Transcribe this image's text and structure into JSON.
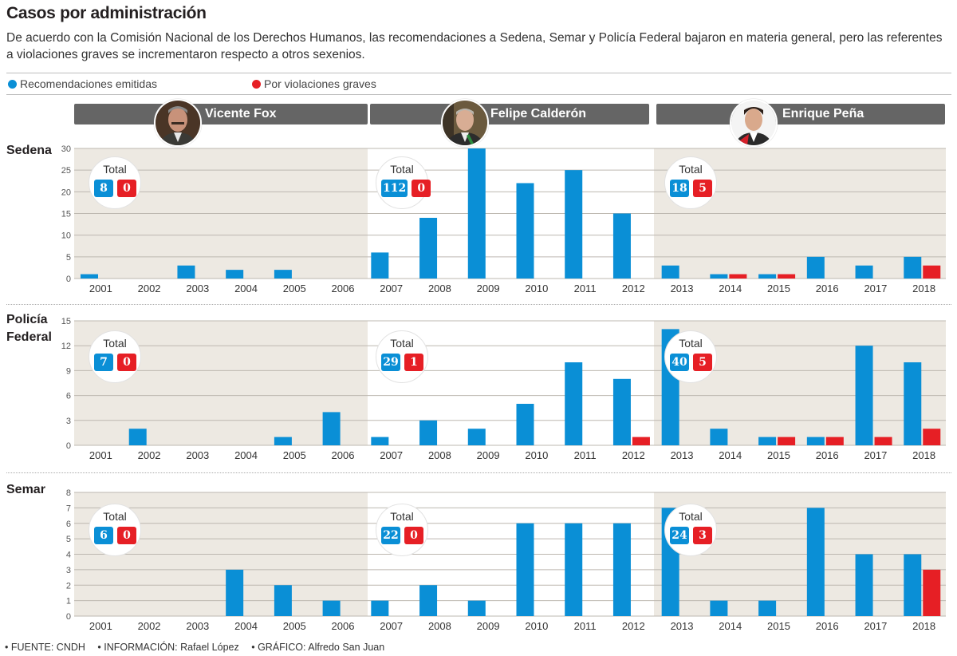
{
  "header": {
    "title": "Casos por administración",
    "subtitle": "De acuerdo con la Comisión Nacional de los Derechos Humanos, las recomendaciones a Sedena, Semar y Policía Federal bajaron en materia general, pero las referentes a violaciones graves se incrementaron respecto a otros sexenios."
  },
  "legend": [
    {
      "label": "Recomendaciones emitidas",
      "color": "#0a8fd6"
    },
    {
      "label": "Por violaciones graves",
      "color": "#e61f25"
    }
  ],
  "administrations": [
    {
      "name": "Vicente Fox",
      "years": [
        "2001",
        "2002",
        "2003",
        "2004",
        "2005",
        "2006"
      ]
    },
    {
      "name": "Felipe Calderón",
      "years": [
        "2007",
        "2008",
        "2009",
        "2010",
        "2011",
        "2012"
      ]
    },
    {
      "name": "Enrique Peña",
      "years": [
        "2013",
        "2014",
        "2015",
        "2016",
        "2017",
        "2018"
      ]
    }
  ],
  "total_label": "Total",
  "colors": {
    "blue": "#0a8fd6",
    "red": "#e61f25",
    "band": "#ede9e2",
    "grid": "#bdb8b0"
  },
  "chart_data": [
    {
      "type": "bar",
      "title": "Sedena",
      "categories": [
        "2001",
        "2002",
        "2003",
        "2004",
        "2005",
        "2006",
        "2007",
        "2008",
        "2009",
        "2010",
        "2011",
        "2012",
        "2013",
        "2014",
        "2015",
        "2016",
        "2017",
        "2018"
      ],
      "series": [
        {
          "name": "Recomendaciones emitidas",
          "values": [
            1,
            0,
            3,
            2,
            2,
            0,
            6,
            14,
            30,
            22,
            25,
            15,
            3,
            1,
            1,
            5,
            3,
            5
          ]
        },
        {
          "name": "Por violaciones graves",
          "values": [
            0,
            0,
            0,
            0,
            0,
            0,
            0,
            0,
            0,
            0,
            0,
            0,
            0,
            1,
            1,
            0,
            0,
            3
          ]
        }
      ],
      "ylim": [
        0,
        30
      ],
      "yticks": [
        0,
        5,
        10,
        15,
        20,
        25,
        30
      ],
      "totals": [
        {
          "administration": "Vicente Fox",
          "emitidas": "8",
          "graves": "0"
        },
        {
          "administration": "Felipe Calderón",
          "emitidas": "112",
          "graves": "0"
        },
        {
          "administration": "Enrique Peña",
          "emitidas": "18",
          "graves": "5"
        }
      ],
      "grid": true
    },
    {
      "type": "bar",
      "title": "Policía Federal",
      "categories": [
        "2001",
        "2002",
        "2003",
        "2004",
        "2005",
        "2006",
        "2007",
        "2008",
        "2009",
        "2010",
        "2011",
        "2012",
        "2013",
        "2014",
        "2015",
        "2016",
        "2017",
        "2018"
      ],
      "series": [
        {
          "name": "Recomendaciones emitidas",
          "values": [
            0,
            2,
            0,
            0,
            1,
            4,
            1,
            3,
            2,
            5,
            10,
            8,
            14,
            2,
            1,
            1,
            12,
            10
          ]
        },
        {
          "name": "Por violaciones graves",
          "values": [
            0,
            0,
            0,
            0,
            0,
            0,
            0,
            0,
            0,
            0,
            0,
            1,
            0,
            0,
            1,
            1,
            1,
            2
          ]
        }
      ],
      "ylim": [
        0,
        15
      ],
      "yticks": [
        0,
        3,
        6,
        9,
        12,
        15
      ],
      "totals": [
        {
          "administration": "Vicente Fox",
          "emitidas": "7",
          "graves": "0"
        },
        {
          "administration": "Felipe Calderón",
          "emitidas": "29",
          "graves": "1"
        },
        {
          "administration": "Enrique Peña",
          "emitidas": "40",
          "graves": "5"
        }
      ],
      "grid": true
    },
    {
      "type": "bar",
      "title": "Semar",
      "categories": [
        "2001",
        "2002",
        "2003",
        "2004",
        "2005",
        "2006",
        "2007",
        "2008",
        "2009",
        "2010",
        "2011",
        "2012",
        "2013",
        "2014",
        "2015",
        "2016",
        "2017",
        "2018"
      ],
      "series": [
        {
          "name": "Recomendaciones emitidas",
          "values": [
            0,
            0,
            0,
            3,
            2,
            1,
            1,
            2,
            1,
            6,
            6,
            6,
            7,
            1,
            1,
            7,
            4,
            4
          ]
        },
        {
          "name": "Por violaciones graves",
          "values": [
            0,
            0,
            0,
            0,
            0,
            0,
            0,
            0,
            0,
            0,
            0,
            0,
            0,
            0,
            0,
            0,
            0,
            3
          ]
        }
      ],
      "ylim": [
        0,
        8
      ],
      "yticks": [
        0,
        1,
        2,
        3,
        4,
        5,
        6,
        7,
        8
      ],
      "totals": [
        {
          "administration": "Vicente Fox",
          "emitidas": "6",
          "graves": "0"
        },
        {
          "administration": "Felipe Calderón",
          "emitidas": "22",
          "graves": "0"
        },
        {
          "administration": "Enrique Peña",
          "emitidas": "24",
          "graves": "3"
        }
      ],
      "grid": true
    }
  ],
  "row_labels": [
    "Sedena",
    "Policía\nFederal",
    "Semar"
  ],
  "footer": [
    "• FUENTE: CNDH",
    "• INFORMACIÓN: Rafael López",
    "• GRÁFICO: Alfredo San Juan"
  ]
}
